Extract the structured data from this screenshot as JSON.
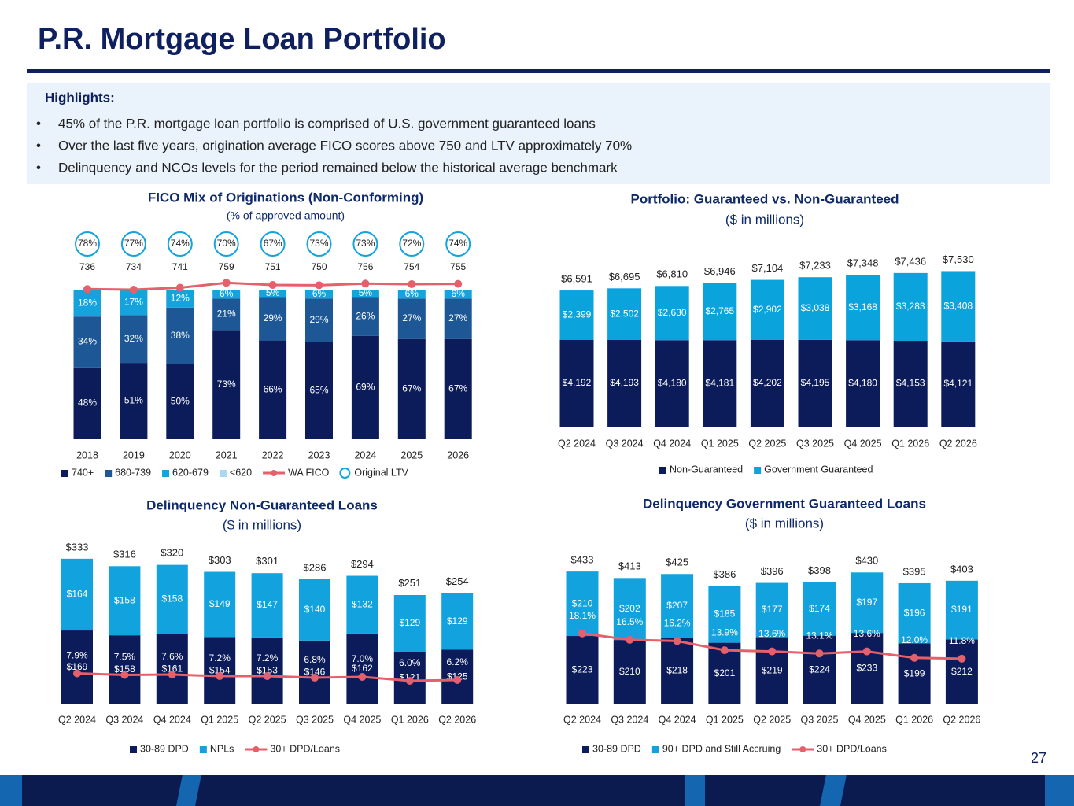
{
  "title": "P.R. Mortgage Loan Portfolio",
  "highlights": {
    "title": "Highlights:",
    "items": [
      "45% of the P.R. mortgage loan portfolio is comprised of U.S. government guaranteed loans",
      "Over the last five years, origination average FICO scores above 750 and LTV approximately 70%",
      "Delinquency and NCOs levels for the period remained below the historical average benchmark"
    ]
  },
  "page_number": "27",
  "chart_data": [
    {
      "type": "bar",
      "stacked": true,
      "title": "FICO Mix of Originations (Non-Conforming)",
      "subtitle": "(% of approved amount)",
      "categories": [
        "2018",
        "2019",
        "2020",
        "2021",
        "2022",
        "2023",
        "2024",
        "2025",
        "2026"
      ],
      "series": [
        {
          "name": "740+",
          "color": "#0c1c5a",
          "values": [
            48,
            51,
            50,
            73,
            66,
            65,
            69,
            67,
            67
          ],
          "value_labels": [
            "48%",
            "51%",
            "50%",
            "73%",
            "66%",
            "65%",
            "69%",
            "67%",
            "67%"
          ]
        },
        {
          "name": "680-739",
          "color": "#1d5796",
          "values": [
            34,
            32,
            38,
            21,
            29,
            29,
            26,
            27,
            27
          ],
          "value_labels": [
            "34%",
            "32%",
            "38%",
            "21%",
            "29%",
            "29%",
            "26%",
            "27%",
            "27%"
          ]
        },
        {
          "name": "620-679",
          "color": "#14a3dd",
          "values": [
            18,
            17,
            12,
            6,
            5,
            6,
            5,
            6,
            6
          ],
          "value_labels": [
            "18%",
            "17%",
            "12%",
            "6%",
            "5%",
            "6%",
            "5%",
            "6%",
            "6%"
          ]
        },
        {
          "name": "<620",
          "color": "#a9d8f0",
          "values": [
            0,
            0,
            0,
            0,
            0,
            0,
            0,
            0,
            0
          ]
        },
        {
          "name": "WA FICO",
          "type": "line",
          "axis": "y2",
          "color": "#e5606a",
          "values": [
            736,
            734,
            741,
            759,
            751,
            750,
            756,
            754,
            755
          ]
        },
        {
          "name": "Original LTV",
          "type": "marker",
          "color": "#14a3dd",
          "values": [
            78,
            77,
            74,
            70,
            67,
            73,
            73,
            72,
            74
          ],
          "value_labels": [
            "78%",
            "77%",
            "74%",
            "70%",
            "67%",
            "73%",
            "73%",
            "72%",
            "74%"
          ]
        }
      ]
    },
    {
      "type": "bar",
      "stacked": true,
      "title": "Portfolio: Guaranteed vs. Non-Guaranteed",
      "subtitle": "($ in millions)",
      "categories": [
        "Q2 2024",
        "Q3 2024",
        "Q4 2024",
        "Q1 2025",
        "Q2 2025",
        "Q3 2025",
        "Q4 2025",
        "Q1 2026",
        "Q2 2026"
      ],
      "series": [
        {
          "name": "Non-Guaranteed",
          "color": "#0c1c5a",
          "values": [
            4192,
            4193,
            4180,
            4181,
            4202,
            4195,
            4180,
            4153,
            4121
          ],
          "value_labels": [
            "$4,192",
            "$4,193",
            "$4,180",
            "$4,181",
            "$4,202",
            "$4,195",
            "$4,180",
            "$4,153",
            "$4,121"
          ]
        },
        {
          "name": "Government Guaranteed",
          "color": "#0aa3dc",
          "values": [
            2399,
            2502,
            2630,
            2765,
            2902,
            3038,
            3168,
            3283,
            3408
          ],
          "value_labels": [
            "$2,399",
            "$2,502",
            "$2,630",
            "$2,765",
            "$2,902",
            "$3,038",
            "$3,168",
            "$3,283",
            "$3,408"
          ]
        }
      ],
      "totals": [
        6591,
        6695,
        6810,
        6946,
        7104,
        7233,
        7348,
        7436,
        7530
      ],
      "total_labels": [
        "$6,591",
        "$6,695",
        "$6,810",
        "$6,946",
        "$7,104",
        "$7,233",
        "$7,348",
        "$7,436",
        "$7,530"
      ]
    },
    {
      "type": "bar",
      "stacked": true,
      "title": "Delinquency Non-Guaranteed Loans",
      "subtitle": "($ in millions)",
      "categories": [
        "Q2 2024",
        "Q3 2024",
        "Q4 2024",
        "Q1 2025",
        "Q2 2025",
        "Q3 2025",
        "Q4 2025",
        "Q1 2026",
        "Q2 2026"
      ],
      "series": [
        {
          "name": "30-89 DPD",
          "color": "#0c1c5a",
          "values": [
            169,
            158,
            161,
            154,
            153,
            146,
            162,
            121,
            125
          ],
          "value_labels": [
            "$169",
            "$158",
            "$161",
            "$154",
            "$153",
            "$146",
            "$162",
            "$121",
            "$125"
          ]
        },
        {
          "name": "NPLs",
          "color": "#12a2dd",
          "values": [
            164,
            158,
            158,
            149,
            147,
            140,
            132,
            129,
            129
          ],
          "value_labels": [
            "$164",
            "$158",
            "$158",
            "$149",
            "$147",
            "$140",
            "$132",
            "$129",
            "$129"
          ]
        },
        {
          "name": "30+ DPD/Loans",
          "type": "line",
          "axis": "y2",
          "color": "#e5606a",
          "values": [
            7.9,
            7.5,
            7.6,
            7.2,
            7.2,
            6.8,
            7.0,
            6.0,
            6.2
          ],
          "value_labels": [
            "7.9%",
            "7.5%",
            "7.6%",
            "7.2%",
            "7.2%",
            "6.8%",
            "7.0%",
            "6.0%",
            "6.2%"
          ]
        }
      ],
      "totals": [
        333,
        316,
        320,
        303,
        301,
        286,
        294,
        251,
        254
      ],
      "total_labels": [
        "$333",
        "$316",
        "$320",
        "$303",
        "$301",
        "$286",
        "$294",
        "$251",
        "$254"
      ]
    },
    {
      "type": "bar",
      "stacked": true,
      "title": "Delinquency Government Guaranteed Loans",
      "subtitle": "($ in millions)",
      "categories": [
        "Q2 2024",
        "Q3 2024",
        "Q4 2024",
        "Q1 2025",
        "Q2 2025",
        "Q3 2025",
        "Q4 2025",
        "Q1 2026",
        "Q2 2026"
      ],
      "series": [
        {
          "name": "30-89 DPD",
          "color": "#0c1c5a",
          "values": [
            223,
            210,
            218,
            201,
            219,
            224,
            233,
            199,
            212
          ],
          "value_labels": [
            "$223",
            "$210",
            "$218",
            "$201",
            "$219",
            "$224",
            "$233",
            "$199",
            "$212"
          ]
        },
        {
          "name": "90+ DPD and Still Accruing",
          "color": "#12a2dd",
          "values": [
            210,
            202,
            207,
            185,
            177,
            174,
            197,
            196,
            191
          ],
          "value_labels": [
            "$210",
            "$202",
            "$207",
            "$185",
            "$177",
            "$174",
            "$197",
            "$196",
            "$191"
          ]
        },
        {
          "name": "30+ DPD/Loans",
          "type": "line",
          "axis": "y2",
          "color": "#e5606a",
          "values": [
            18.1,
            16.5,
            16.2,
            13.9,
            13.6,
            13.1,
            13.6,
            12.0,
            11.8
          ],
          "value_labels": [
            "18.1%",
            "16.5%",
            "16.2%",
            "13.9%",
            "13.6%",
            "13.1%",
            "13.6%",
            "12.0%",
            "11.8%"
          ]
        }
      ],
      "totals": [
        433,
        413,
        425,
        386,
        396,
        398,
        430,
        395,
        403
      ],
      "total_labels": [
        "$433",
        "$413",
        "$425",
        "$386",
        "$396",
        "$398",
        "$430",
        "$395",
        "$403"
      ]
    }
  ]
}
